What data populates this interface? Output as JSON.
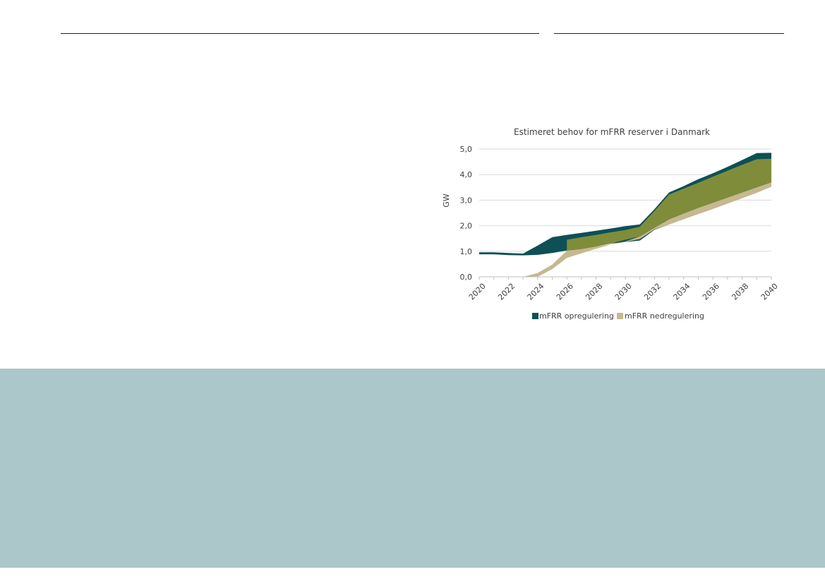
{
  "chart_data": {
    "type": "area",
    "title": "Estimeret behov for mFRR reserver i Danmark",
    "ylabel": "GW",
    "xlabel": "",
    "ylim": [
      0,
      5
    ],
    "yticks": [
      "0,0",
      "1,0",
      "2,0",
      "3,0",
      "4,0",
      "5,0"
    ],
    "ytick_values": [
      0,
      1,
      2,
      3,
      4,
      5
    ],
    "xticks": [
      "2020",
      "2022",
      "2024",
      "2026",
      "2028",
      "2030",
      "2032",
      "2034",
      "2036",
      "2038",
      "2040"
    ],
    "x": [
      2020,
      2021,
      2022,
      2023,
      2024,
      2025,
      2026,
      2027,
      2028,
      2029,
      2030,
      2031,
      2032,
      2033,
      2034,
      2035,
      2036,
      2037,
      2038,
      2039,
      2040
    ],
    "grid": true,
    "legend_position": "bottom",
    "series": [
      {
        "name": "mFRR opregulering",
        "color": "#0d5056",
        "lower": [
          0.88,
          0.88,
          0.85,
          0.84,
          0.86,
          0.93,
          1.03,
          1.12,
          1.21,
          1.3,
          1.36,
          1.42,
          1.84,
          2.05,
          2.26,
          2.46,
          2.66,
          2.87,
          3.08,
          3.29,
          3.53
        ],
        "upper": [
          0.96,
          0.96,
          0.93,
          0.91,
          1.22,
          1.55,
          1.64,
          1.72,
          1.8,
          1.89,
          1.98,
          2.05,
          2.65,
          3.3,
          3.55,
          3.82,
          4.05,
          4.3,
          4.57,
          4.84,
          4.85
        ]
      },
      {
        "name": "mFRR nedregulering",
        "color": "#c6b88f",
        "lower": [
          0,
          0,
          0,
          0,
          0,
          0.3,
          0.74,
          0.92,
          1.1,
          1.26,
          1.36,
          1.48,
          1.86,
          2.05,
          2.26,
          2.46,
          2.66,
          2.87,
          3.08,
          3.29,
          3.53
        ],
        "upper": [
          0,
          0,
          0,
          0,
          0.15,
          0.48,
          1.02,
          1.08,
          1.18,
          1.28,
          1.38,
          1.58,
          1.92,
          2.25,
          2.48,
          2.7,
          2.9,
          3.1,
          3.3,
          3.5,
          3.7
        ]
      }
    ],
    "overlap_band": {
      "color": "#7f8c3a",
      "lower": [
        0,
        0,
        0,
        0,
        0,
        0,
        1.02,
        1.08,
        1.18,
        1.3,
        1.45,
        1.58,
        1.92,
        2.25,
        2.48,
        2.7,
        2.9,
        3.1,
        3.3,
        3.5,
        3.7
      ],
      "upper": [
        0,
        0,
        0,
        0,
        0,
        0,
        1.45,
        1.55,
        1.64,
        1.74,
        1.83,
        1.96,
        2.58,
        3.22,
        3.45,
        3.68,
        3.92,
        4.15,
        4.38,
        4.6,
        4.62
      ]
    }
  }
}
